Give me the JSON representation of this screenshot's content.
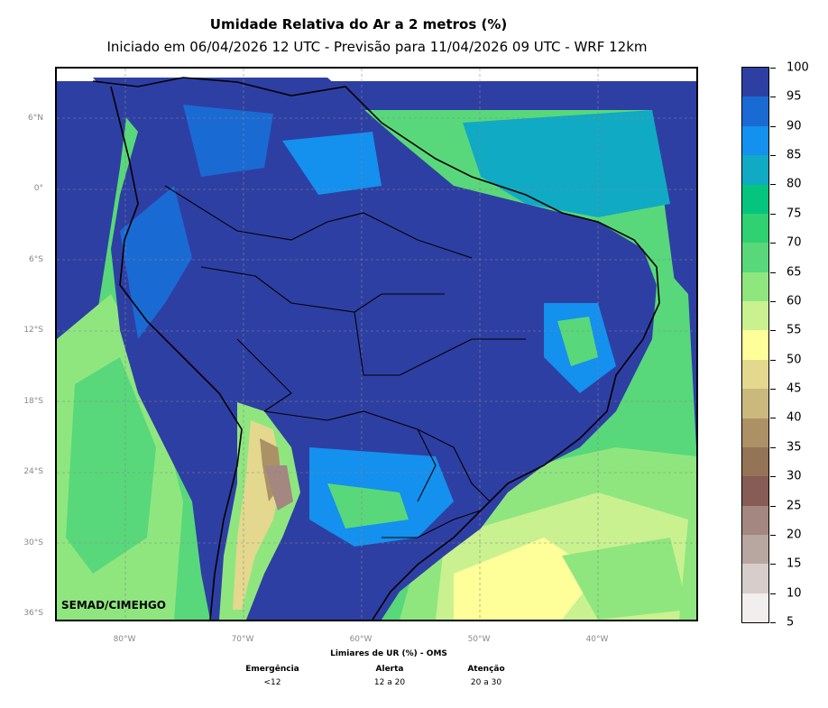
{
  "title": "Umidade Relativa do Ar a 2 metros (%)",
  "subtitle": "Iniciado em 06/04/2026 12 UTC - Previsão para 11/04/2026 09 UTC - WRF 12km",
  "watermark": "SEMAD/CIMEHGO",
  "lat_labels": [
    "6°N",
    "0°",
    "6°S",
    "12°S",
    "18°S",
    "24°S",
    "30°S",
    "36°S"
  ],
  "lon_labels": [
    "80°W",
    "70°W",
    "60°W",
    "50°W",
    "40°W"
  ],
  "colorbar": {
    "labels": [
      "100",
      "95",
      "90",
      "85",
      "80",
      "75",
      "70",
      "65",
      "60",
      "55",
      "50",
      "45",
      "40",
      "35",
      "30",
      "25",
      "20",
      "15",
      "10",
      "5"
    ],
    "colors": [
      "#2e3fa3",
      "#1a6ad4",
      "#1490ee",
      "#10aac4",
      "#05c47e",
      "#2fd170",
      "#58d87a",
      "#8fe67f",
      "#c9f190",
      "#ffff99",
      "#e3d88d",
      "#cbb87c",
      "#ac9166",
      "#957356",
      "#875c55",
      "#a38780",
      "#b8a6a0",
      "#d7cdca",
      "#f1eeed"
    ]
  },
  "thresholds": {
    "title": "Limiares de UR (%) - OMS",
    "levels": [
      {
        "name": "Emergência",
        "range": "<12"
      },
      {
        "name": "Alerta",
        "range": "12 a 20"
      },
      {
        "name": "Atenção",
        "range": "20 a 30"
      }
    ]
  }
}
